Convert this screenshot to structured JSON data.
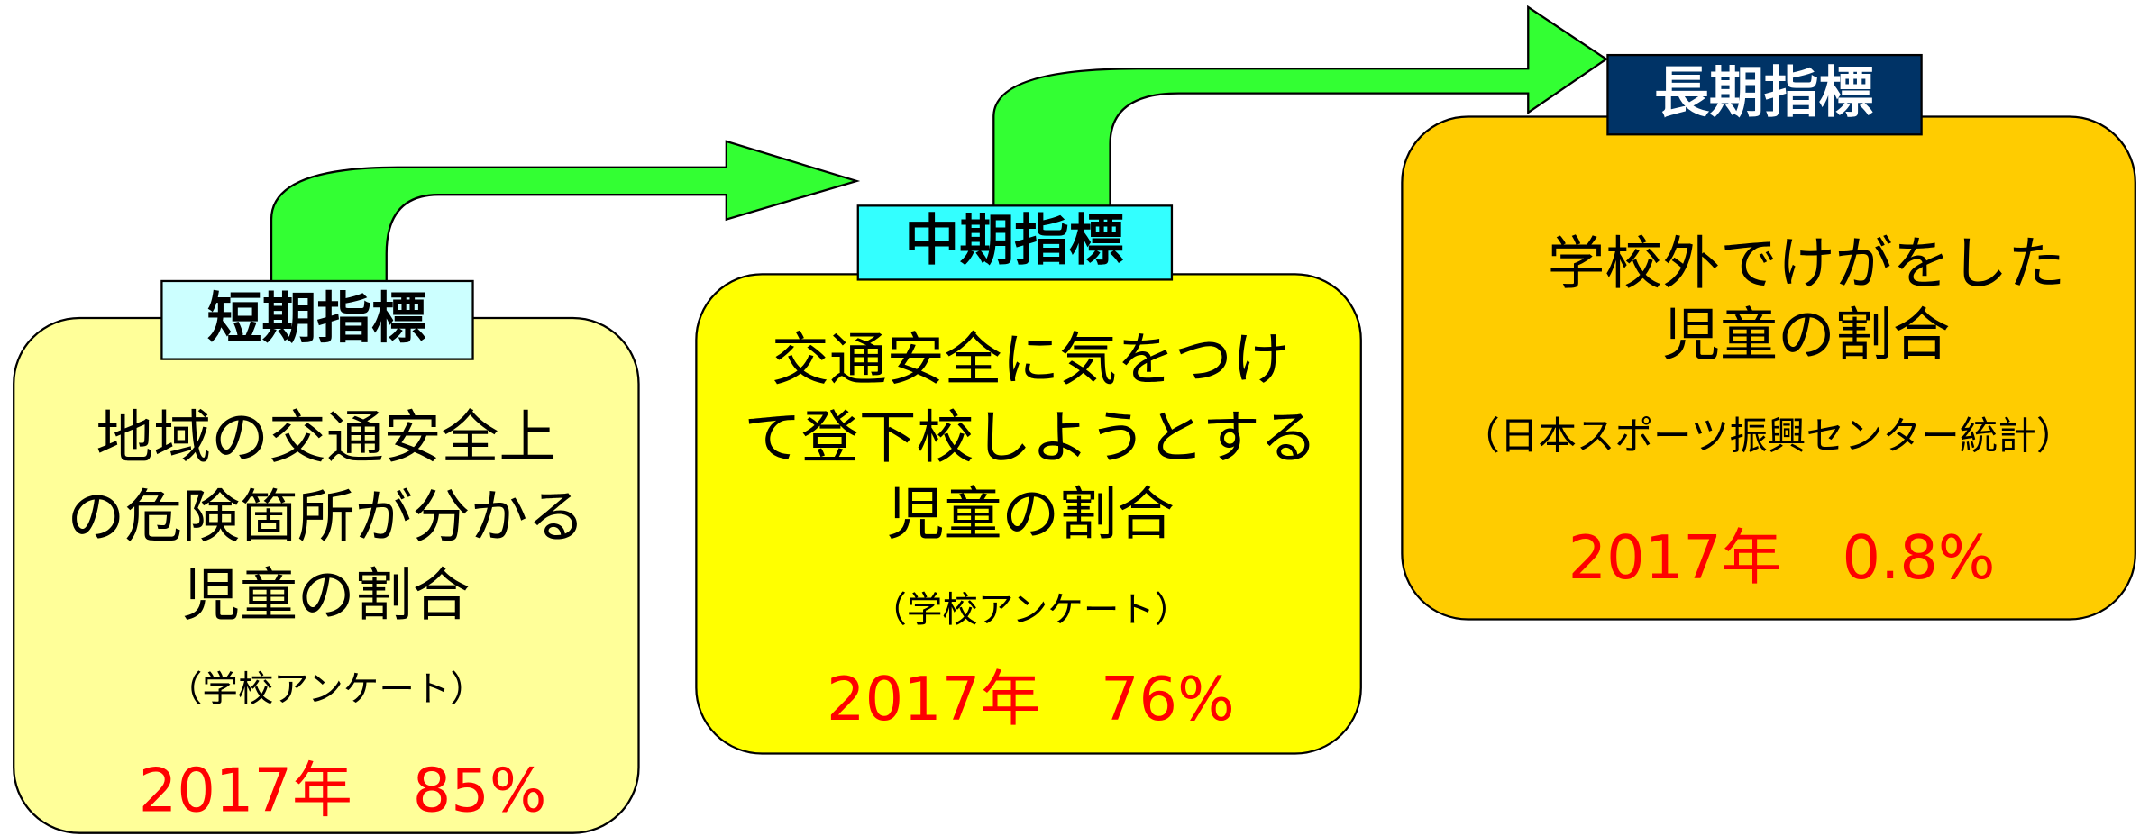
{
  "boxes": [
    {
      "label": "短期指標",
      "lines": [
        "地域の交通安全上",
        "の危険箇所が分かる",
        "児童の割合"
      ],
      "source": "（学校アンケート）",
      "result": "2017年　85%"
    },
    {
      "label": "中期指標",
      "lines": [
        "交通安全に気をつけ",
        "て登下校しようとする",
        "児童の割合"
      ],
      "source": "（学校アンケート）",
      "result": "2017年　76%"
    },
    {
      "label": "長期指標",
      "lines": [
        "学校外でけがをした",
        "児童の割合"
      ],
      "source": "（日本スポーツ振興センター統計）",
      "result": "2017年　0.8%"
    }
  ]
}
